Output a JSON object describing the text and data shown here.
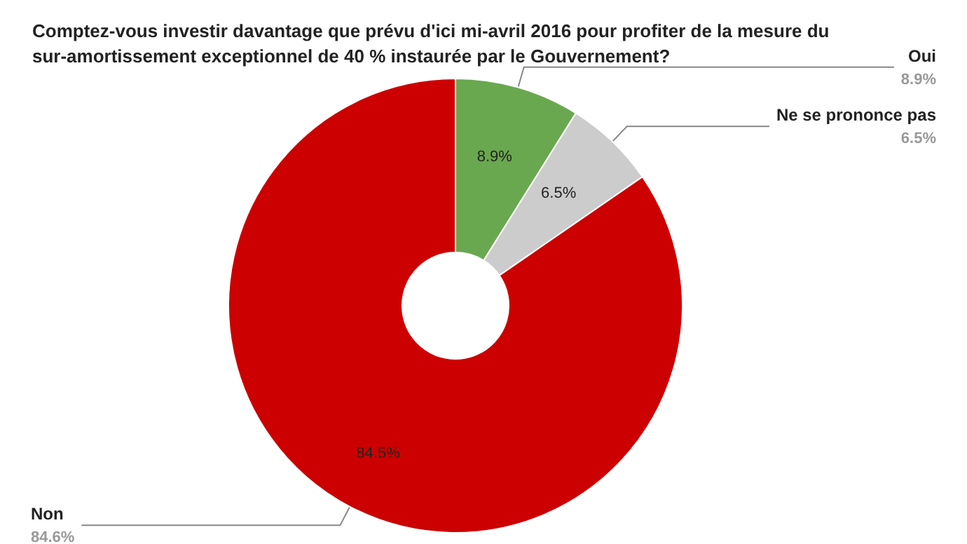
{
  "chart_data": {
    "type": "donut",
    "title": "Comptez-vous investir davantage que prévu d'ici mi-avril 2016 pour profiter de la mesure du sur-amortissement exceptionnel de 40 % instaurée par le Gouvernement?",
    "categories": [
      "Oui",
      "Ne se prononce pas",
      "Non"
    ],
    "values": [
      8.9,
      6.5,
      84.6
    ],
    "colors": [
      "#6aa84f",
      "#cccccc",
      "#cc0000"
    ],
    "annotations": [
      "8.9%",
      "6.5%",
      "84.5%"
    ],
    "value_labels": [
      "8.9%",
      "6.5%",
      "84.6%"
    ],
    "legend": false
  }
}
